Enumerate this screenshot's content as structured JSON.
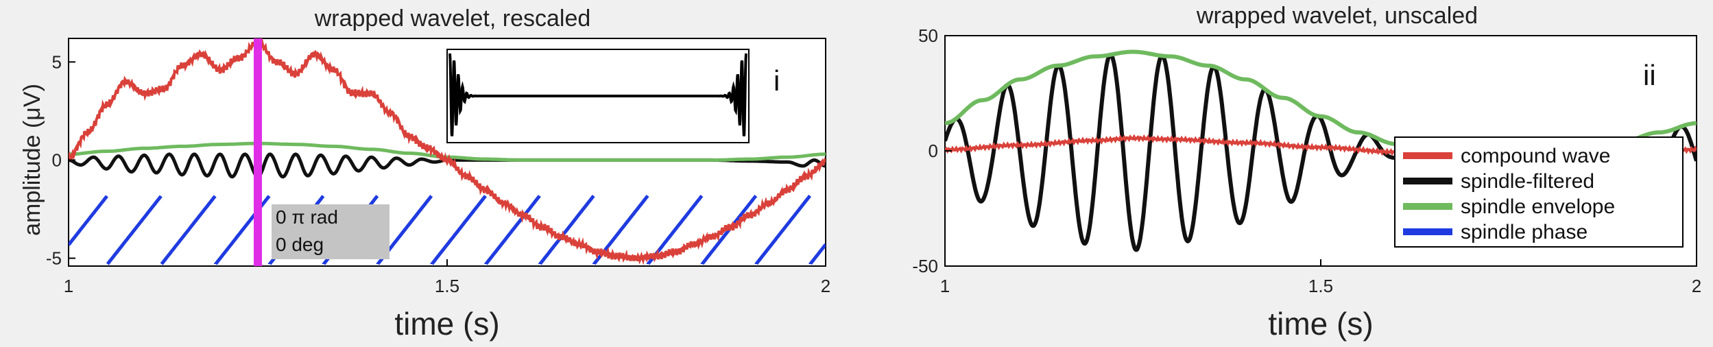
{
  "colors": {
    "compound": "#d9413a",
    "filtered": "#111111",
    "envelope": "#6fba5f",
    "phase": "#1f3be0",
    "marker": "#e02ee8",
    "panel_bg": "#ffffff",
    "page_bg": "#f0f0f0",
    "readout_bg": "#c4c4c4"
  },
  "chart_data": [
    {
      "type": "line",
      "title": "wrapped wavelet, rescaled",
      "panel_label": "i",
      "xlabel": "time  (s)",
      "ylabel": "amplitude (μV)",
      "xlim": [
        1,
        2
      ],
      "ylim": [
        -5.4,
        6.2
      ],
      "xticks": [
        1,
        1.5,
        2
      ],
      "xtick_labels": [
        "1",
        "1.5",
        "2"
      ],
      "yticks": [
        5,
        0,
        -5
      ],
      "ytick_labels": [
        "5",
        "0",
        "-5"
      ],
      "grid": false,
      "marker_time": 1.25,
      "readout": {
        "phase": "0 π rad",
        "degrees": "0 deg"
      },
      "series": [
        {
          "key": "compound",
          "x": [
            1.0,
            1.025,
            1.05,
            1.075,
            1.1,
            1.125,
            1.15,
            1.175,
            1.2,
            1.225,
            1.25,
            1.275,
            1.3,
            1.325,
            1.35,
            1.375,
            1.4,
            1.425,
            1.45,
            1.475,
            1.5,
            1.525,
            1.55,
            1.575,
            1.6,
            1.625,
            1.65,
            1.675,
            1.7,
            1.725,
            1.75,
            1.775,
            1.8,
            1.825,
            1.85,
            1.875,
            1.9,
            1.925,
            1.95,
            1.975,
            2.0
          ],
          "y": [
            0.1,
            1.4,
            2.8,
            4.0,
            3.4,
            3.6,
            4.8,
            5.4,
            4.6,
            5.2,
            6.0,
            5.0,
            4.4,
            5.4,
            4.6,
            3.4,
            3.4,
            2.4,
            1.2,
            0.6,
            0.0,
            -0.8,
            -1.5,
            -2.2,
            -2.8,
            -3.4,
            -3.9,
            -4.3,
            -4.7,
            -4.9,
            -5.0,
            -4.9,
            -4.7,
            -4.3,
            -3.9,
            -3.4,
            -2.8,
            -2.2,
            -1.5,
            -0.8,
            -0.1
          ]
        },
        {
          "key": "filtered",
          "x": [
            1.0,
            1.016,
            1.033,
            1.05,
            1.066,
            1.083,
            1.1,
            1.116,
            1.133,
            1.15,
            1.166,
            1.183,
            1.2,
            1.216,
            1.233,
            1.25,
            1.266,
            1.283,
            1.3,
            1.316,
            1.333,
            1.35,
            1.366,
            1.383,
            1.4,
            1.416,
            1.433,
            1.45,
            1.466,
            1.483,
            1.5,
            1.55,
            1.6,
            1.65,
            1.7,
            1.75,
            1.8,
            1.85,
            1.9,
            1.95,
            1.97,
            1.985,
            2.0
          ],
          "y": [
            0.0,
            -0.25,
            0.15,
            -0.45,
            0.2,
            -0.6,
            0.25,
            -0.65,
            0.3,
            -0.75,
            0.3,
            -0.8,
            0.3,
            -0.85,
            0.3,
            -0.85,
            0.3,
            -0.85,
            0.3,
            -0.8,
            0.25,
            -0.7,
            0.2,
            -0.55,
            0.15,
            -0.4,
            0.1,
            -0.25,
            0.05,
            -0.1,
            0.0,
            0.0,
            0.0,
            0.0,
            0.0,
            0.0,
            0.0,
            0.0,
            -0.05,
            -0.1,
            -0.3,
            0.0,
            -0.3
          ]
        },
        {
          "key": "envelope",
          "x": [
            1.0,
            1.05,
            1.1,
            1.15,
            1.2,
            1.25,
            1.3,
            1.35,
            1.4,
            1.45,
            1.5,
            1.55,
            1.6,
            1.65,
            1.7,
            1.75,
            1.8,
            1.85,
            1.9,
            1.95,
            2.0
          ],
          "y": [
            0.3,
            0.45,
            0.6,
            0.7,
            0.8,
            0.85,
            0.8,
            0.7,
            0.55,
            0.35,
            0.15,
            0.05,
            0.0,
            0.0,
            0.0,
            0.0,
            0.0,
            0.0,
            0.05,
            0.15,
            0.3
          ]
        },
        {
          "key": "phase",
          "wrapped_sawtooth": true,
          "phase_ymin": -5.3,
          "phase_ymax": -1.8,
          "phase_start": 0.28,
          "period": 0.0714
        }
      ],
      "inset": {
        "description_series": "wrapped wavelet kernel",
        "bursts": "edges"
      }
    },
    {
      "type": "line",
      "title": "wrapped wavelet, unscaled",
      "panel_label": "ii",
      "xlabel": "time  (s)",
      "ylabel": "",
      "xlim": [
        1,
        2
      ],
      "ylim": [
        -50,
        50
      ],
      "xticks": [
        1,
        1.5,
        2
      ],
      "xtick_labels": [
        "1",
        "1.5",
        "2"
      ],
      "yticks": [
        50,
        0,
        -50
      ],
      "ytick_labels": [
        "50",
        "0",
        "-50"
      ],
      "grid": false,
      "legend_placement": "bottom-right",
      "legend": [
        "compound wave",
        "spindle-filtered",
        "spindle envelope",
        "spindle phase"
      ],
      "series": [
        {
          "key": "compound",
          "x": [
            1.0,
            1.1,
            1.2,
            1.25,
            1.3,
            1.4,
            1.5,
            1.6,
            1.7,
            1.8,
            1.9,
            2.0
          ],
          "y": [
            0.5,
            2.5,
            4.5,
            5.5,
            5.0,
            3.5,
            1.5,
            -0.5,
            -2.0,
            -2.5,
            -1.0,
            0.5
          ]
        },
        {
          "key": "filtered",
          "amplitude_source": "envelope",
          "start_time": 1.0,
          "frequency_hz": 14.5,
          "phase_offset": -1.2
        },
        {
          "key": "envelope",
          "x": [
            1.0,
            1.05,
            1.1,
            1.15,
            1.2,
            1.25,
            1.3,
            1.35,
            1.4,
            1.45,
            1.5,
            1.55,
            1.6,
            1.65,
            1.7,
            1.75,
            1.8,
            1.85,
            1.9,
            1.95,
            2.0
          ],
          "y": [
            12,
            22,
            31,
            37,
            41,
            43,
            41,
            37,
            31,
            23,
            15,
            8,
            3,
            0,
            -2,
            -2,
            -1,
            1,
            4,
            8,
            12
          ]
        }
      ]
    }
  ]
}
